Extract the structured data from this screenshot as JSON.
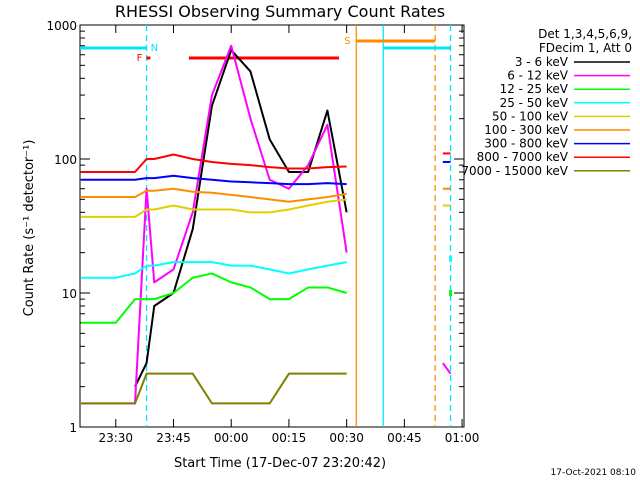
{
  "chart_data": {
    "type": "line",
    "title": "RHESSI Observing Summary Count Rates",
    "xlabel": "Start Time (17-Dec-07 23:20:42)",
    "ylabel": "Count Rate (s⁻¹ detector⁻¹)",
    "y_scale": "log",
    "ylim": [
      1,
      1000
    ],
    "xlim": [
      "23:20:42",
      "01:00:30"
    ],
    "x_ticks": [
      "23:30",
      "23:45",
      "00:00",
      "00:15",
      "00:30",
      "00:45",
      "01:00"
    ],
    "y_ticks": [
      "1",
      "10",
      "100",
      "1000"
    ],
    "grid": false,
    "legend_position": "top-right",
    "legend_header": [
      "Det 1,3,4,5,6,9,",
      "FDecim 1, Att 0"
    ],
    "footer_date": "17-Oct-2021 08:10",
    "flags": [
      {
        "label": "N",
        "color": "#00e5ff",
        "start": "23:20:42",
        "end": "23:38:00"
      },
      {
        "label": "F",
        "color": "#ff0000",
        "start": "23:38:00",
        "end": "23:39:00"
      },
      {
        "label": "",
        "color": "#ff0000",
        "start": "23:49:00",
        "end": "00:28:00"
      },
      {
        "label": "S",
        "color": "#ff8c00",
        "start": "00:32:30",
        "end": "00:53:00"
      },
      {
        "label": "",
        "color": "#00e5ff",
        "start": "00:39:30",
        "end": "00:57:00"
      }
    ],
    "vlines": [
      {
        "time": "23:38:00",
        "color": "#00e5ff",
        "style": "dashed"
      },
      {
        "time": "00:32:30",
        "color": "#ff8c00",
        "style": "solid"
      },
      {
        "time": "00:39:30",
        "color": "#00e5ff",
        "style": "solid"
      },
      {
        "time": "00:53:00",
        "color": "#ff8c00",
        "style": "dashed"
      },
      {
        "time": "00:57:00",
        "color": "#00e5ff",
        "style": "dashed"
      }
    ],
    "x": [
      "23:21",
      "23:30",
      "23:35",
      "23:38",
      "23:40",
      "23:45",
      "23:50",
      "23:55",
      "00:00",
      "00:05",
      "00:10",
      "00:15",
      "00:20",
      "00:25",
      "00:30",
      "00:32",
      "00:55",
      "00:57"
    ],
    "series": [
      {
        "name": "3 - 6 keV",
        "color": "#000000",
        "values": [
          null,
          null,
          2,
          3,
          8,
          10,
          30,
          250,
          650,
          450,
          140,
          80,
          80,
          230,
          40,
          null,
          null,
          null
        ]
      },
      {
        "name": "6 - 12 keV",
        "color": "#ff00ff",
        "values": [
          1.5,
          1.5,
          1.5,
          60,
          12,
          15,
          40,
          300,
          700,
          200,
          70,
          60,
          90,
          180,
          20,
          null,
          3,
          2.5
        ]
      },
      {
        "name": "12 - 25 keV",
        "color": "#00ff00",
        "values": [
          6,
          6,
          9,
          9,
          9,
          10,
          13,
          14,
          12,
          11,
          9,
          9,
          11,
          11,
          10,
          null,
          null,
          10
        ]
      },
      {
        "name": "25 - 50 keV",
        "color": "#00ffff",
        "values": [
          13,
          13,
          14,
          16,
          16,
          17,
          17,
          17,
          16,
          16,
          15,
          14,
          15,
          16,
          17,
          null,
          null,
          18
        ]
      },
      {
        "name": "50 - 100 keV",
        "color": "#e0d000",
        "values": [
          37,
          37,
          37,
          42,
          42,
          45,
          42,
          42,
          42,
          40,
          40,
          42,
          45,
          48,
          50,
          null,
          45,
          45
        ]
      },
      {
        "name": "100 - 300 keV",
        "color": "#ff8c00",
        "values": [
          52,
          52,
          52,
          58,
          58,
          60,
          57,
          56,
          54,
          52,
          50,
          48,
          50,
          52,
          55,
          null,
          60,
          60
        ]
      },
      {
        "name": "300 - 800 keV",
        "color": "#0000ff",
        "values": [
          70,
          70,
          70,
          72,
          72,
          75,
          72,
          70,
          68,
          67,
          66,
          65,
          65,
          66,
          65,
          null,
          95,
          95
        ]
      },
      {
        "name": "800 - 7000 keV",
        "color": "#ff0000",
        "values": [
          80,
          80,
          80,
          100,
          100,
          108,
          100,
          95,
          92,
          90,
          87,
          85,
          85,
          87,
          88,
          null,
          110,
          110
        ]
      },
      {
        "name": "7000 - 15000 keV",
        "color": "#808000",
        "values": [
          1.5,
          1.5,
          1.5,
          2.5,
          2.5,
          2.5,
          2.5,
          1.5,
          1.5,
          1.5,
          1.5,
          2.5,
          2.5,
          2.5,
          2.5,
          null,
          null,
          null
        ]
      }
    ]
  }
}
